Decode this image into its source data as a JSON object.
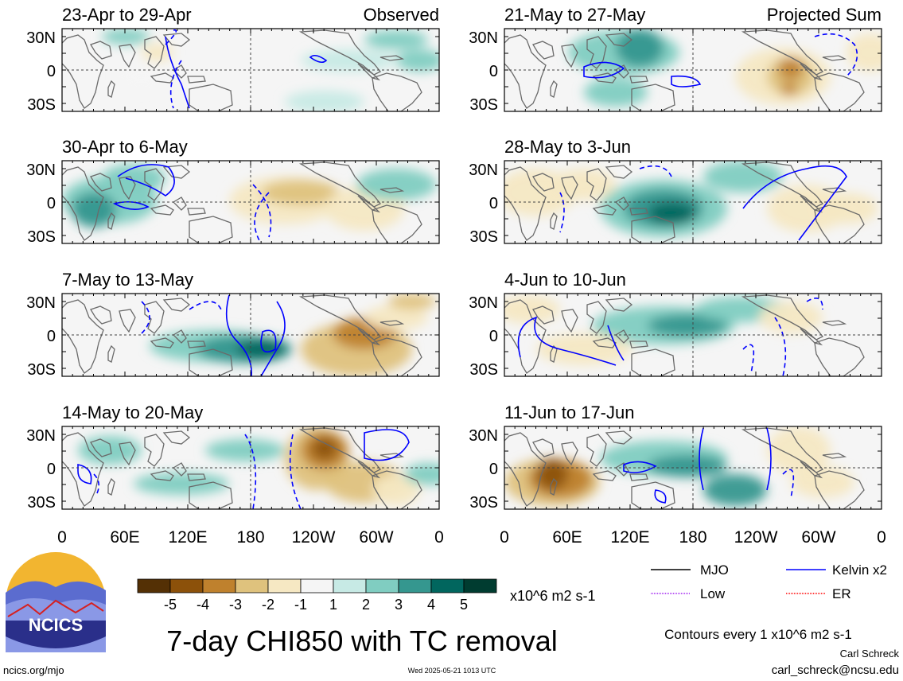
{
  "panels": [
    {
      "label": "23-Apr to 29-Apr",
      "tag": "Observed"
    },
    {
      "label": "30-Apr to 6-May",
      "tag": ""
    },
    {
      "label": "7-May to 13-May",
      "tag": ""
    },
    {
      "label": "14-May to 20-May",
      "tag": ""
    },
    {
      "label": "21-May to 27-May",
      "tag": "Projected Sum"
    },
    {
      "label": "28-May to 3-Jun",
      "tag": ""
    },
    {
      "label": "4-Jun to 10-Jun",
      "tag": ""
    },
    {
      "label": "11-Jun to 17-Jun",
      "tag": ""
    }
  ],
  "lat_labels": [
    "30N",
    "0",
    "30S"
  ],
  "lon_labels": [
    "0",
    "60E",
    "120E",
    "180",
    "120W",
    "60W",
    "0"
  ],
  "colorbar": {
    "ticks": [
      "-5",
      "-4",
      "-3",
      "-2",
      "-1",
      "1",
      "2",
      "3",
      "4",
      "5"
    ],
    "units": "x10^6 m2 s-1",
    "colors": [
      "#543005",
      "#8c510a",
      "#bf812d",
      "#dfc27d",
      "#f6e8c3",
      "#f5f5f5",
      "#c7eae5",
      "#80cdc1",
      "#35978f",
      "#01665e",
      "#003c30"
    ]
  },
  "legend": [
    {
      "label": "MJO",
      "color": "#000000"
    },
    {
      "label": "Kelvin x2",
      "color": "#0000ff"
    },
    {
      "label": "Low",
      "color": "#a020f0"
    },
    {
      "label": "ER",
      "color": "#ff0000"
    }
  ],
  "logo_text": "NCICS",
  "title": "7-day CHI850 with TC removal",
  "contour_note": "Contours every 1 x10^6 m2 s-1",
  "author": "Carl Schreck",
  "email": "carl_schreck@ncsu.edu",
  "site": "ncics.org/mjo",
  "timestamp": "Wed 2025-05-21 1013 UTC"
}
